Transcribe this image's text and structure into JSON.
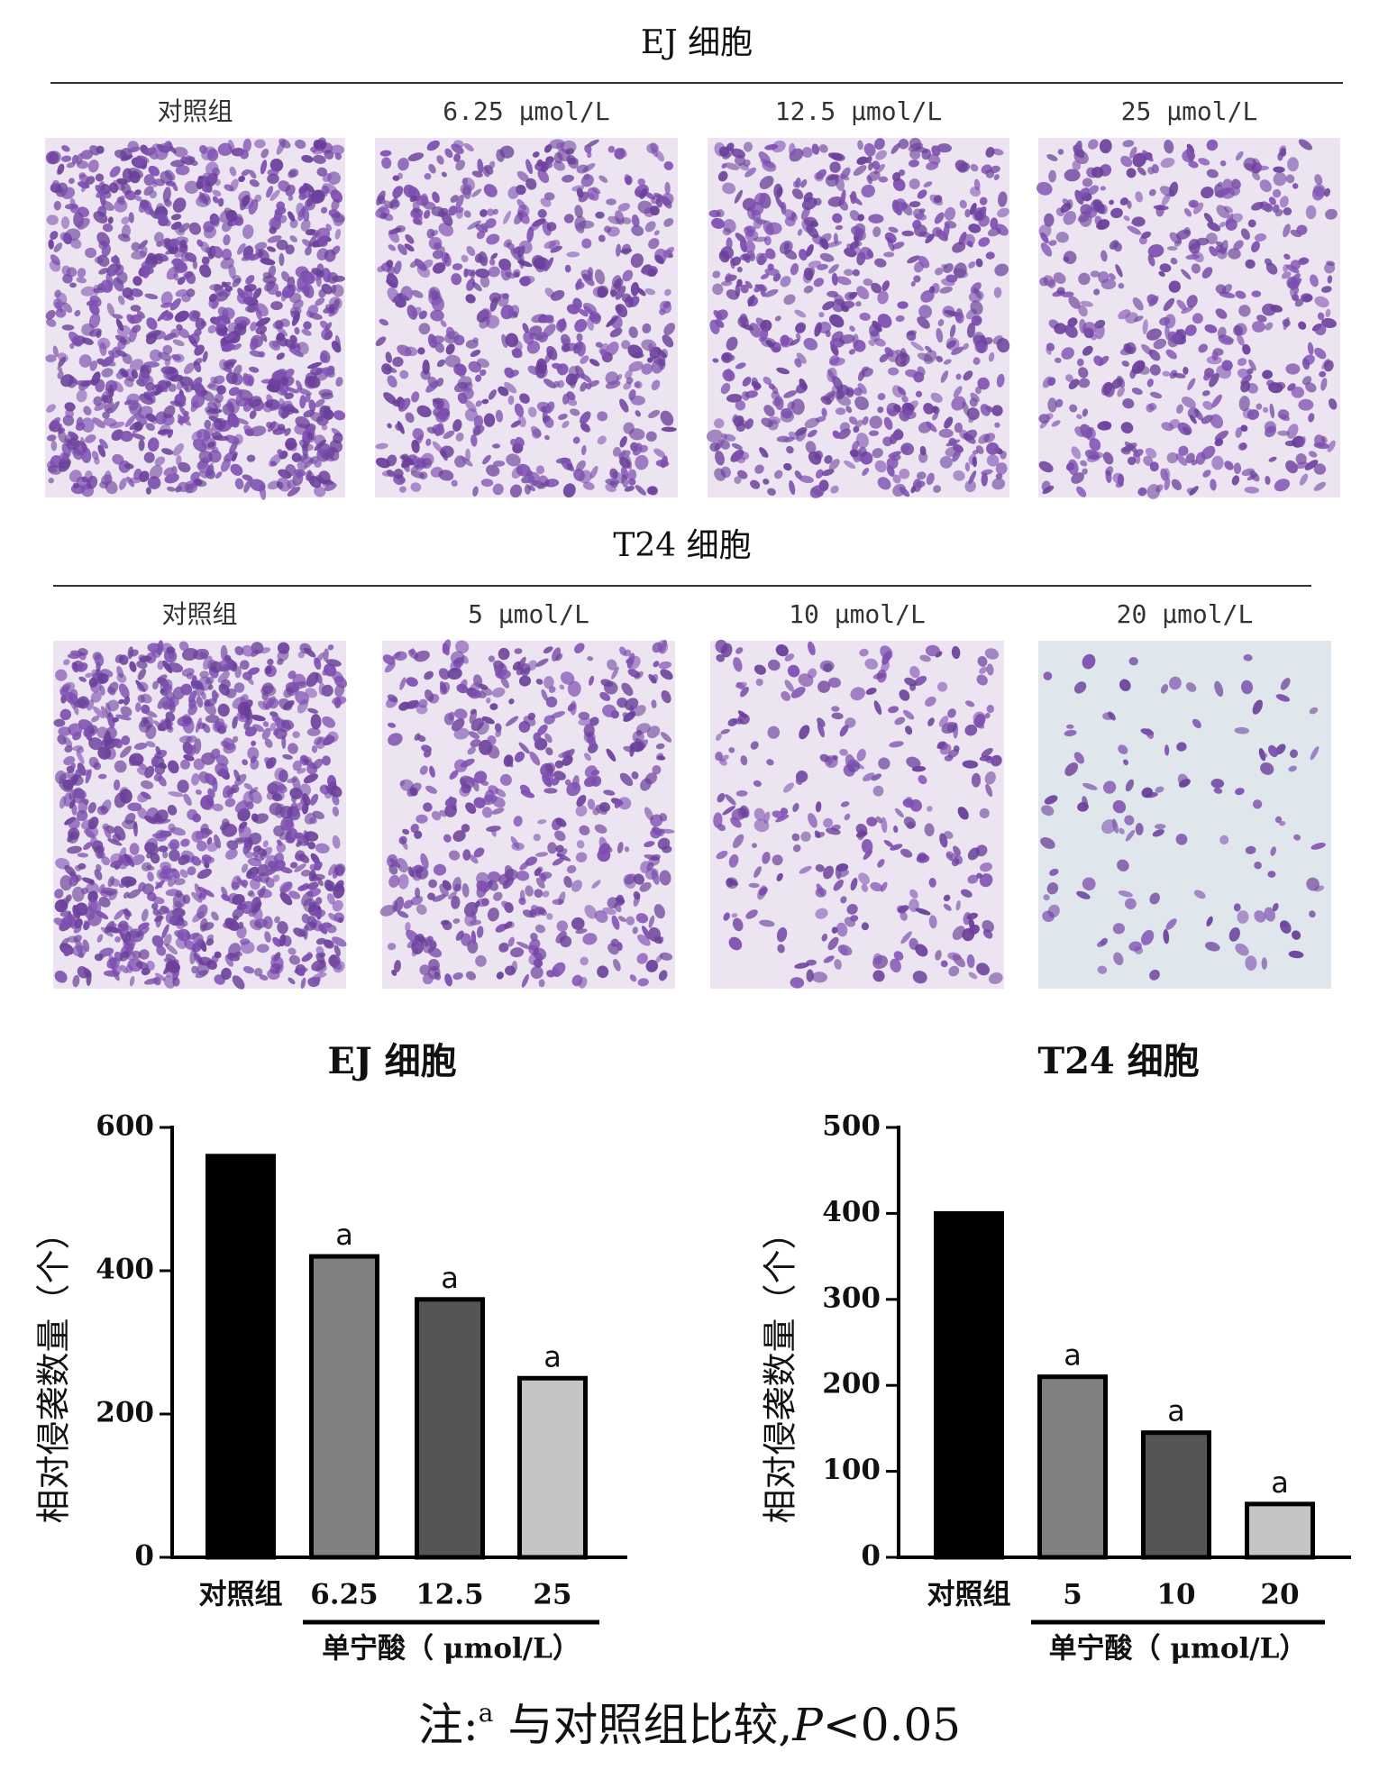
{
  "panels": [
    {
      "title": "EJ 细胞",
      "labels": [
        "对照组",
        "6.25 μmol/L",
        "12.5 μmol/L",
        "25 μmol/L"
      ]
    },
    {
      "title": "T24 细胞",
      "labels": [
        "对照组",
        "5 μmol/L",
        "10 μmol/L",
        "20 μmol/L"
      ]
    }
  ],
  "chart_data": [
    {
      "type": "bar",
      "title": "EJ 细胞",
      "y_label": "相对侵袭数量（个）",
      "group_label": "单宁酸（ μmol/L）",
      "categories": [
        "对照组",
        "6.25",
        "12.5",
        "25"
      ],
      "values": [
        560,
        420,
        360,
        250
      ],
      "colors": [
        "#000000",
        "#808080",
        "#555555",
        "#c4c4c4"
      ],
      "sig_labels": [
        null,
        "a",
        "a",
        "a"
      ],
      "ylim": [
        0,
        600
      ],
      "yticks": [
        0,
        200,
        400,
        600
      ]
    },
    {
      "type": "bar",
      "title": "T24 细胞",
      "y_label": "相对侵袭数量（个）",
      "group_label": "单宁酸（ μmol/L）",
      "categories": [
        "对照组",
        "5",
        "10",
        "20"
      ],
      "values": [
        400,
        210,
        145,
        62
      ],
      "colors": [
        "#000000",
        "#808080",
        "#555555",
        "#c4c4c4"
      ],
      "sig_labels": [
        null,
        "a",
        "a",
        "a"
      ],
      "ylim": [
        0,
        500
      ],
      "yticks": [
        0,
        100,
        200,
        300,
        400,
        500
      ]
    }
  ],
  "note": {
    "prefix": "注:",
    "sup": "a",
    "text": " 与对照组比较,",
    "p": "P",
    "rest": "<0.05"
  }
}
